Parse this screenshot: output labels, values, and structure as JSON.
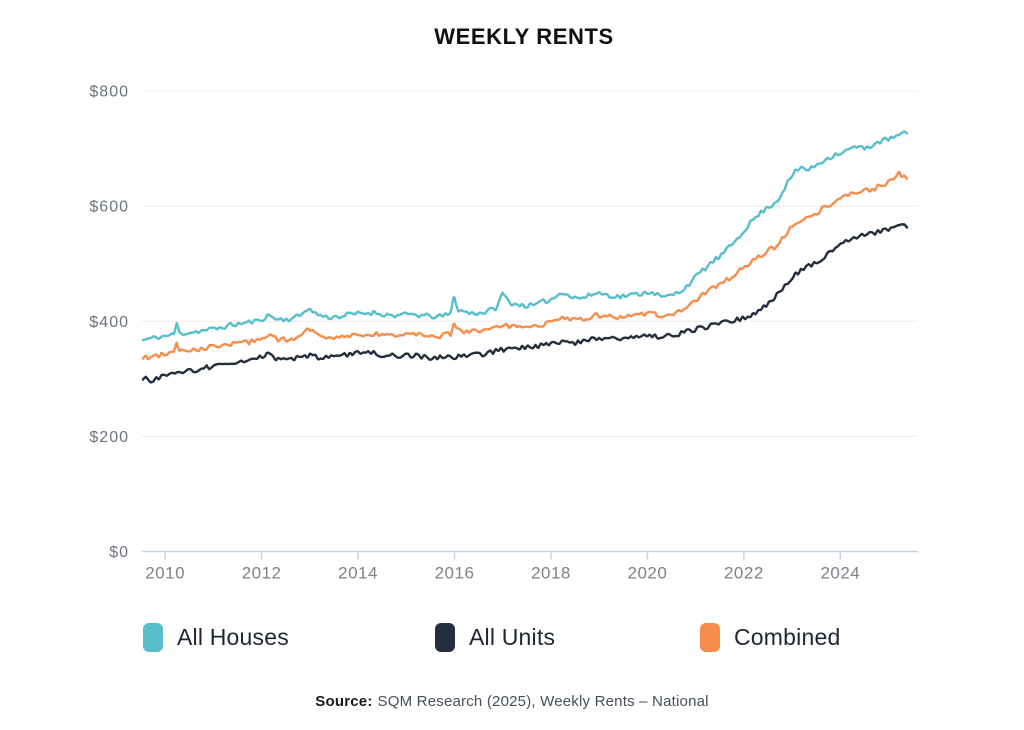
{
  "title": "WEEKLY RENTS",
  "source": {
    "label": "Source:",
    "text": "SQM Research (2025), Weekly Rents – National"
  },
  "colors": {
    "all_houses": "#57bfcb",
    "all_units": "#242e3e",
    "combined": "#f78c4b",
    "gridline": "#ececee",
    "axis": "#c7d5e2",
    "tick_label": "#7c8289",
    "y_label": "#6e747c",
    "title": "#0d0f12"
  },
  "chart_data": {
    "type": "line",
    "title": "WEEKLY RENTS",
    "xlabel": "",
    "ylabel": "",
    "grid": "horizontal",
    "legend_position": "bottom",
    "x_axis": {
      "range": [
        2009.52,
        2025.61
      ],
      "ticks": [
        {
          "value": 2010,
          "label": "2010"
        },
        {
          "value": 2012,
          "label": "2012"
        },
        {
          "value": 2014,
          "label": "2014"
        },
        {
          "value": 2016,
          "label": "2016"
        },
        {
          "value": 2018,
          "label": "2018"
        },
        {
          "value": 2020,
          "label": "2020"
        },
        {
          "value": 2022,
          "label": "2022"
        },
        {
          "value": 2024,
          "label": "2024"
        }
      ]
    },
    "y_axis": {
      "range": [
        0,
        800
      ],
      "ticks": [
        {
          "value": 0,
          "label": "$0"
        },
        {
          "value": 200,
          "label": "$200"
        },
        {
          "value": 400,
          "label": "$400"
        },
        {
          "value": 600,
          "label": "$600"
        },
        {
          "value": 800,
          "label": "$800"
        }
      ]
    },
    "noise": {
      "seed": 11,
      "amplitude": 4.5,
      "knot_interval": 0.055,
      "sample_step": 0.02
    },
    "series": [
      {
        "name": "All Houses",
        "color": "#57bfcb",
        "points": [
          [
            2009.54,
            367
          ],
          [
            2009.7,
            370
          ],
          [
            2009.9,
            373
          ],
          [
            2010.05,
            375
          ],
          [
            2010.18,
            377
          ],
          [
            2010.24,
            396
          ],
          [
            2010.3,
            379
          ],
          [
            2010.55,
            381
          ],
          [
            2010.8,
            384
          ],
          [
            2011.05,
            387
          ],
          [
            2011.35,
            393
          ],
          [
            2011.65,
            397
          ],
          [
            2011.9,
            400
          ],
          [
            2012.05,
            406
          ],
          [
            2012.15,
            410
          ],
          [
            2012.35,
            403
          ],
          [
            2012.6,
            404
          ],
          [
            2012.8,
            410
          ],
          [
            2012.95,
            423
          ],
          [
            2013.1,
            414
          ],
          [
            2013.35,
            407
          ],
          [
            2013.6,
            408
          ],
          [
            2013.85,
            412
          ],
          [
            2014.1,
            414
          ],
          [
            2014.35,
            415
          ],
          [
            2014.6,
            411
          ],
          [
            2014.85,
            410
          ],
          [
            2015.1,
            412
          ],
          [
            2015.4,
            409
          ],
          [
            2015.7,
            408
          ],
          [
            2015.92,
            413
          ],
          [
            2015.99,
            445
          ],
          [
            2016.08,
            419
          ],
          [
            2016.35,
            414
          ],
          [
            2016.6,
            415
          ],
          [
            2016.85,
            422
          ],
          [
            2017.0,
            448
          ],
          [
            2017.15,
            432
          ],
          [
            2017.4,
            428
          ],
          [
            2017.65,
            427
          ],
          [
            2017.85,
            434
          ],
          [
            2018.05,
            440
          ],
          [
            2018.25,
            452
          ],
          [
            2018.45,
            441
          ],
          [
            2018.7,
            441
          ],
          [
            2018.95,
            450
          ],
          [
            2019.15,
            446
          ],
          [
            2019.4,
            443
          ],
          [
            2019.65,
            445
          ],
          [
            2019.9,
            449
          ],
          [
            2020.1,
            452
          ],
          [
            2020.3,
            441
          ],
          [
            2020.5,
            445
          ],
          [
            2020.7,
            453
          ],
          [
            2020.9,
            468
          ],
          [
            2021.1,
            485
          ],
          [
            2021.3,
            500
          ],
          [
            2021.5,
            512
          ],
          [
            2021.7,
            528
          ],
          [
            2021.9,
            548
          ],
          [
            2022.1,
            568
          ],
          [
            2022.3,
            585
          ],
          [
            2022.5,
            598
          ],
          [
            2022.7,
            610
          ],
          [
            2022.9,
            640
          ],
          [
            2023.05,
            658
          ],
          [
            2023.2,
            668
          ],
          [
            2023.35,
            662
          ],
          [
            2023.5,
            672
          ],
          [
            2023.7,
            682
          ],
          [
            2023.9,
            690
          ],
          [
            2024.1,
            695
          ],
          [
            2024.3,
            703
          ],
          [
            2024.5,
            700
          ],
          [
            2024.7,
            708
          ],
          [
            2024.9,
            714
          ],
          [
            2025.1,
            719
          ],
          [
            2025.25,
            724
          ],
          [
            2025.38,
            727
          ]
        ]
      },
      {
        "name": "All Units",
        "color": "#242e3e",
        "points": [
          [
            2009.54,
            302
          ],
          [
            2009.68,
            297
          ],
          [
            2009.9,
            303
          ],
          [
            2010.1,
            307
          ],
          [
            2010.35,
            311
          ],
          [
            2010.6,
            315
          ],
          [
            2010.85,
            319
          ],
          [
            2011.1,
            323
          ],
          [
            2011.4,
            326
          ],
          [
            2011.7,
            330
          ],
          [
            2011.95,
            336
          ],
          [
            2012.1,
            344
          ],
          [
            2012.3,
            334
          ],
          [
            2012.55,
            333
          ],
          [
            2012.8,
            337
          ],
          [
            2013.0,
            340
          ],
          [
            2013.25,
            336
          ],
          [
            2013.5,
            338
          ],
          [
            2013.75,
            341
          ],
          [
            2014.0,
            344
          ],
          [
            2014.2,
            347
          ],
          [
            2014.45,
            342
          ],
          [
            2014.7,
            341
          ],
          [
            2014.95,
            341
          ],
          [
            2015.2,
            340
          ],
          [
            2015.5,
            336
          ],
          [
            2015.8,
            339
          ],
          [
            2016.05,
            339
          ],
          [
            2016.3,
            341
          ],
          [
            2016.55,
            343
          ],
          [
            2016.8,
            347
          ],
          [
            2017.05,
            352
          ],
          [
            2017.3,
            354
          ],
          [
            2017.55,
            355
          ],
          [
            2017.8,
            358
          ],
          [
            2018.05,
            362
          ],
          [
            2018.3,
            366
          ],
          [
            2018.5,
            363
          ],
          [
            2018.75,
            367
          ],
          [
            2019.0,
            372
          ],
          [
            2019.25,
            370
          ],
          [
            2019.5,
            371
          ],
          [
            2019.75,
            373
          ],
          [
            2020.0,
            376
          ],
          [
            2020.25,
            372
          ],
          [
            2020.5,
            375
          ],
          [
            2020.75,
            380
          ],
          [
            2021.0,
            386
          ],
          [
            2021.25,
            391
          ],
          [
            2021.5,
            396
          ],
          [
            2021.75,
            400
          ],
          [
            2022.0,
            406
          ],
          [
            2022.2,
            414
          ],
          [
            2022.4,
            424
          ],
          [
            2022.6,
            438
          ],
          [
            2022.8,
            458
          ],
          [
            2023.0,
            477
          ],
          [
            2023.2,
            490
          ],
          [
            2023.4,
            498
          ],
          [
            2023.6,
            506
          ],
          [
            2023.8,
            522
          ],
          [
            2023.95,
            533
          ],
          [
            2024.1,
            541
          ],
          [
            2024.3,
            545
          ],
          [
            2024.5,
            549
          ],
          [
            2024.7,
            553
          ],
          [
            2024.9,
            558
          ],
          [
            2025.05,
            562
          ],
          [
            2025.2,
            568
          ],
          [
            2025.3,
            564
          ],
          [
            2025.38,
            567
          ]
        ]
      },
      {
        "name": "Combined",
        "color": "#f78c4b",
        "points": [
          [
            2009.54,
            336
          ],
          [
            2009.7,
            338
          ],
          [
            2009.9,
            341
          ],
          [
            2010.05,
            343
          ],
          [
            2010.18,
            345
          ],
          [
            2010.24,
            365
          ],
          [
            2010.3,
            347
          ],
          [
            2010.55,
            350
          ],
          [
            2010.8,
            353
          ],
          [
            2011.05,
            356
          ],
          [
            2011.35,
            360
          ],
          [
            2011.65,
            363
          ],
          [
            2011.9,
            366
          ],
          [
            2012.05,
            370
          ],
          [
            2012.15,
            374
          ],
          [
            2012.35,
            368
          ],
          [
            2012.6,
            369
          ],
          [
            2012.8,
            374
          ],
          [
            2012.95,
            388
          ],
          [
            2013.1,
            379
          ],
          [
            2013.35,
            373
          ],
          [
            2013.6,
            374
          ],
          [
            2013.85,
            376
          ],
          [
            2014.1,
            377
          ],
          [
            2014.35,
            378
          ],
          [
            2014.6,
            376
          ],
          [
            2014.85,
            375
          ],
          [
            2015.1,
            377
          ],
          [
            2015.4,
            375
          ],
          [
            2015.7,
            374
          ],
          [
            2015.92,
            378
          ],
          [
            2015.99,
            398
          ],
          [
            2016.08,
            384
          ],
          [
            2016.35,
            381
          ],
          [
            2016.6,
            382
          ],
          [
            2016.85,
            387
          ],
          [
            2017.0,
            396
          ],
          [
            2017.15,
            391
          ],
          [
            2017.4,
            389
          ],
          [
            2017.65,
            389
          ],
          [
            2017.85,
            395
          ],
          [
            2018.05,
            401
          ],
          [
            2018.25,
            409
          ],
          [
            2018.45,
            402
          ],
          [
            2018.7,
            403
          ],
          [
            2018.95,
            411
          ],
          [
            2019.15,
            408
          ],
          [
            2019.4,
            406
          ],
          [
            2019.65,
            408
          ],
          [
            2019.9,
            412
          ],
          [
            2020.1,
            416
          ],
          [
            2020.3,
            409
          ],
          [
            2020.5,
            413
          ],
          [
            2020.7,
            419
          ],
          [
            2020.9,
            429
          ],
          [
            2021.1,
            443
          ],
          [
            2021.3,
            455
          ],
          [
            2021.5,
            464
          ],
          [
            2021.7,
            475
          ],
          [
            2021.9,
            487
          ],
          [
            2022.1,
            500
          ],
          [
            2022.3,
            512
          ],
          [
            2022.5,
            522
          ],
          [
            2022.7,
            532
          ],
          [
            2022.9,
            553
          ],
          [
            2023.05,
            570
          ],
          [
            2023.2,
            578
          ],
          [
            2023.35,
            580
          ],
          [
            2023.5,
            588
          ],
          [
            2023.7,
            598
          ],
          [
            2023.9,
            608
          ],
          [
            2024.1,
            617
          ],
          [
            2024.3,
            624
          ],
          [
            2024.5,
            626
          ],
          [
            2024.7,
            631
          ],
          [
            2024.9,
            638
          ],
          [
            2025.1,
            646
          ],
          [
            2025.22,
            656
          ],
          [
            2025.32,
            650
          ],
          [
            2025.38,
            652
          ]
        ]
      }
    ]
  }
}
